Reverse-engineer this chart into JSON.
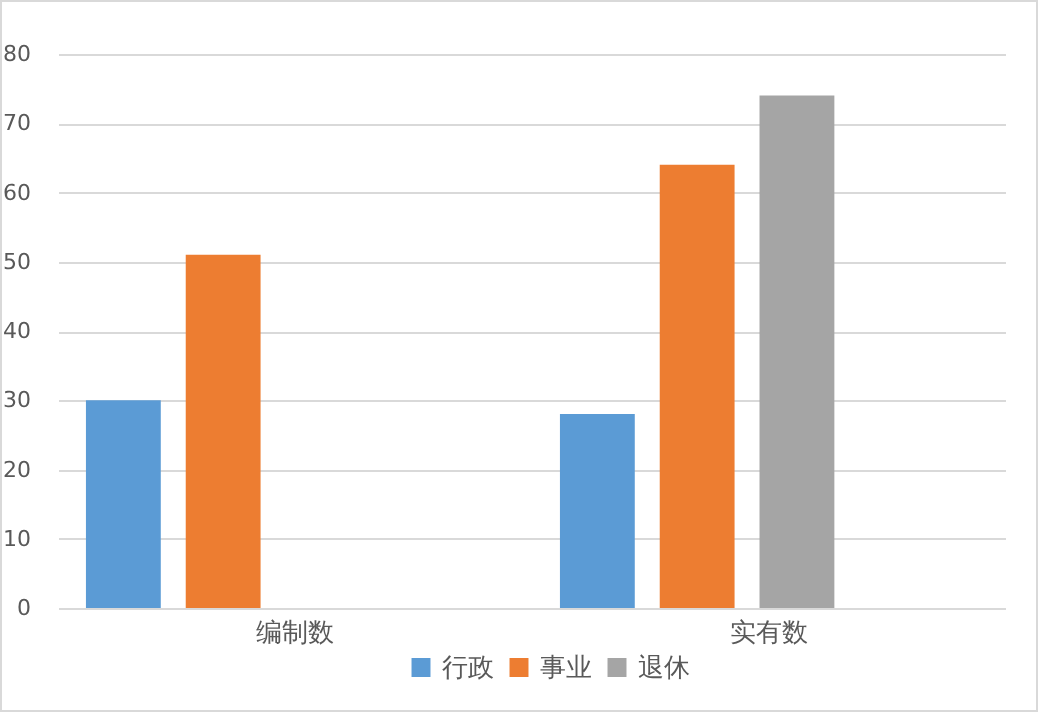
{
  "chart_data": {
    "type": "bar",
    "categories": [
      "编制数",
      "实有数"
    ],
    "series": [
      {
        "name": "行政",
        "color": "#5b9bd5",
        "values": [
          30,
          28
        ]
      },
      {
        "name": "事业",
        "color": "#ed7d31",
        "values": [
          51,
          64
        ]
      },
      {
        "name": "退休",
        "color": "#a5a5a5",
        "values": [
          null,
          74
        ]
      }
    ],
    "ylim": [
      0,
      80
    ],
    "yticks": [
      0,
      10,
      20,
      30,
      40,
      50,
      60,
      70,
      80
    ],
    "grid": "y",
    "legend": "bottom"
  }
}
